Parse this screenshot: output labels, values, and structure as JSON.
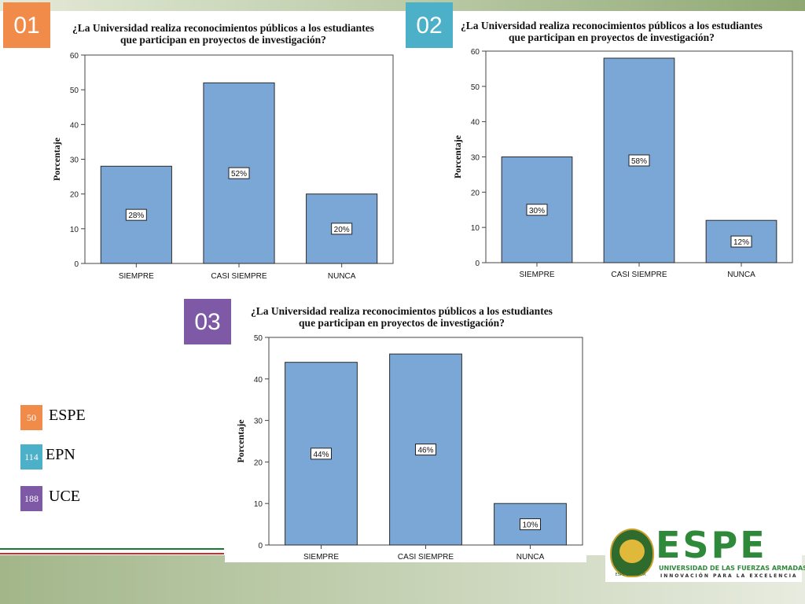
{
  "colors": {
    "bar": "#7aa7d6",
    "bar_stroke": "#2b2b2b",
    "badge_01": "#f08b4a",
    "badge_02": "#4bb0c8",
    "badge_03": "#7e5aa6",
    "flag_green": "#1c7a2f",
    "flag_red": "#d62a2a"
  },
  "legend": [
    {
      "count": "50",
      "label": "ESPE",
      "color": "#f08b4a"
    },
    {
      "count": "114",
      "label": "EPN",
      "color": "#4bb0c8"
    },
    {
      "count": "188",
      "label": "UCE",
      "color": "#7e5aa6"
    }
  ],
  "logo": {
    "word": "ESPE",
    "line1": "UNIVERSIDAD DE LAS FUERZAS ARMADAS",
    "line2": "INNOVACIÓN PARA LA EXCELENCIA",
    "seal_text": "ESPE ECUADOR"
  },
  "chart_data": [
    {
      "badge": "01",
      "type": "bar",
      "title_line1": "¿La Universidad realiza reconocimientos públicos a los estudiantes",
      "title_line2": "que participan en proyectos de investigación?",
      "ylabel": "Porcentaje",
      "xlabel": "",
      "categories": [
        "SIEMPRE",
        "CASI SIEMPRE",
        "NUNCA"
      ],
      "values": [
        28,
        52,
        20
      ],
      "data_labels": [
        "28%",
        "52%",
        "20%"
      ],
      "ylim": [
        0,
        60
      ],
      "yticks": [
        0,
        10,
        20,
        30,
        40,
        50,
        60
      ]
    },
    {
      "badge": "02",
      "type": "bar",
      "title_line1": "¿La Universidad realiza reconocimientos públicos a los estudiantes",
      "title_line2": "que participan en proyectos de investigación?",
      "ylabel": "Porcentaje",
      "xlabel": "",
      "categories": [
        "SIEMPRE",
        "CASI SIEMPRE",
        "NUNCA"
      ],
      "values": [
        30,
        58,
        12
      ],
      "data_labels": [
        "30%",
        "58%",
        "12%"
      ],
      "ylim": [
        0,
        60
      ],
      "yticks": [
        0,
        10,
        20,
        30,
        40,
        50,
        60
      ]
    },
    {
      "badge": "03",
      "type": "bar",
      "title_line1": "¿La Universidad realiza reconocimientos públicos a los estudiantes",
      "title_line2": "que participan en proyectos de investigación?",
      "ylabel": "Porcentaje",
      "xlabel": "",
      "categories": [
        "SIEMPRE",
        "CASI SIEMPRE",
        "NUNCA"
      ],
      "values": [
        44,
        46,
        10
      ],
      "data_labels": [
        "44%",
        "46%",
        "10%"
      ],
      "ylim": [
        0,
        50
      ],
      "yticks": [
        0,
        10,
        20,
        30,
        40,
        50
      ]
    }
  ]
}
